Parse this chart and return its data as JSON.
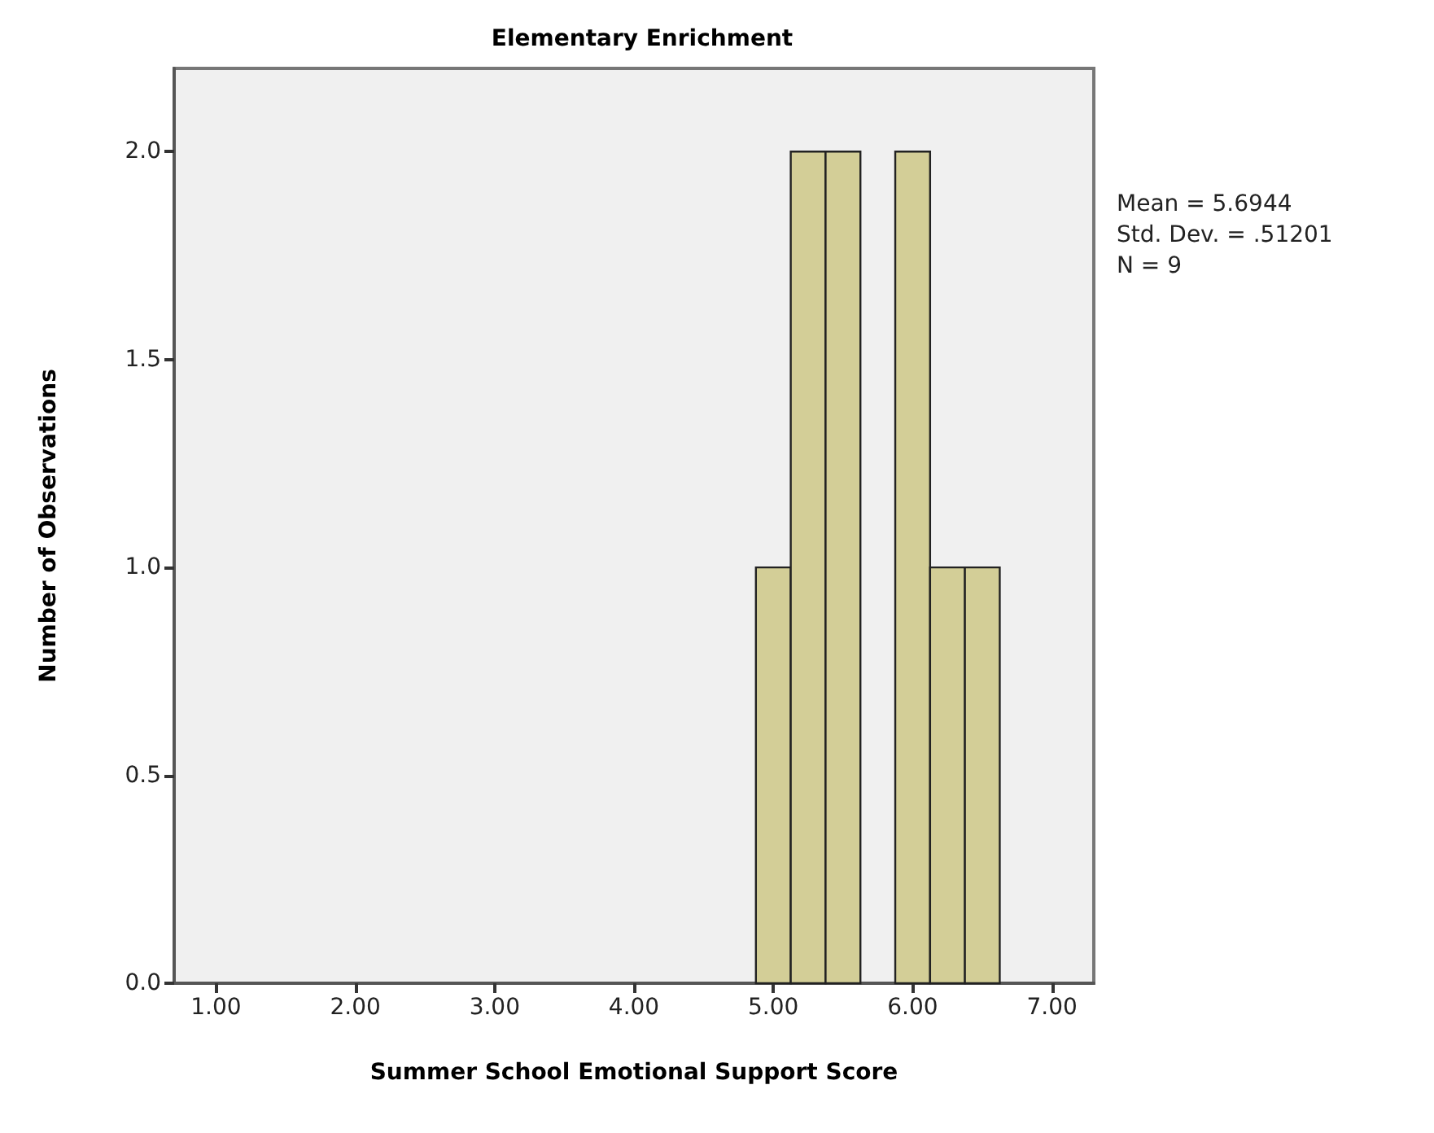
{
  "chart_data": {
    "type": "histogram",
    "title": "Elementary Enrichment",
    "xlabel": "Summer School Emotional Support Score",
    "ylabel": "Number of Observations",
    "bins": [
      4.875,
      5.125,
      5.375,
      5.625,
      5.875,
      6.125,
      6.375,
      6.625
    ],
    "values": [
      1,
      2,
      2,
      0,
      2,
      1,
      1
    ],
    "color": "#d3ce97",
    "xlim": [
      0.7,
      7.3
    ],
    "xticks": [
      {
        "value": 1,
        "label": "1.00"
      },
      {
        "value": 2,
        "label": "2.00"
      },
      {
        "value": 3,
        "label": "3.00"
      },
      {
        "value": 4,
        "label": "4.00"
      },
      {
        "value": 5,
        "label": "5.00"
      },
      {
        "value": 6,
        "label": "6.00"
      },
      {
        "value": 7,
        "label": "7.00"
      }
    ],
    "ylim": [
      0,
      2.2
    ],
    "yticks": [
      {
        "value": 0,
        "label": "0.0"
      },
      {
        "value": 0.5,
        "label": "0.5"
      },
      {
        "value": 1,
        "label": "1.0"
      },
      {
        "value": 1.5,
        "label": "1.5"
      },
      {
        "value": 2,
        "label": "2.0"
      }
    ],
    "annotations": [
      "Mean = 5.6944",
      "Std. Dev. = .51201",
      "N = 9"
    ],
    "grid": false
  }
}
